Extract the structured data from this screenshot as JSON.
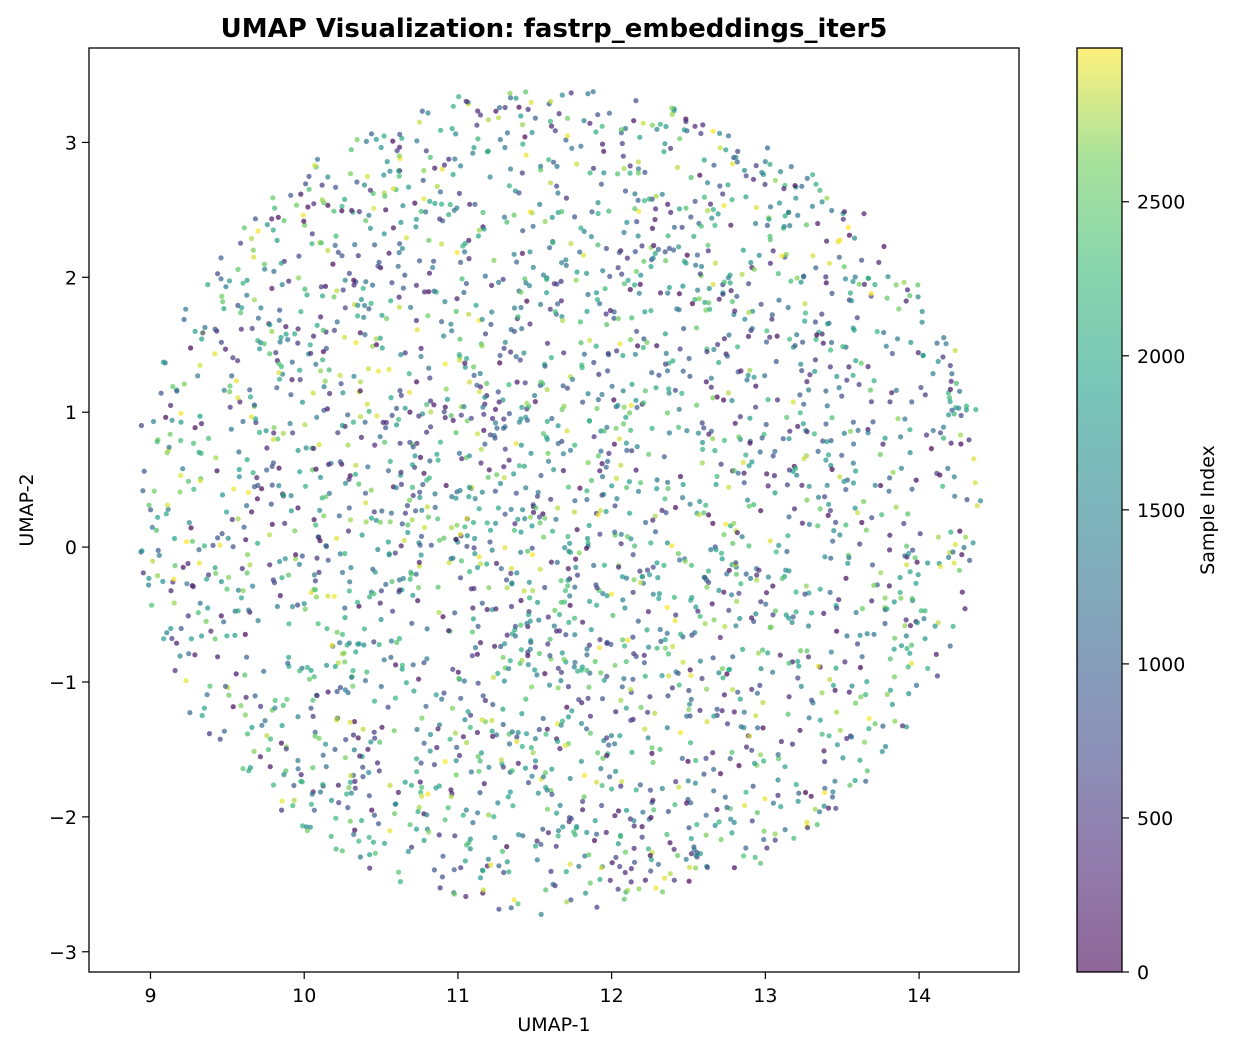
{
  "chart_data": {
    "type": "scatter",
    "title": "UMAP Visualization: fastrp_embeddings_iter5",
    "xlabel": "UMAP-1",
    "ylabel": "UMAP-2",
    "xlim": [
      8.6,
      14.65
    ],
    "ylim": [
      -3.15,
      3.7
    ],
    "xticks": [
      "9",
      "10",
      "11",
      "12",
      "13",
      "14"
    ],
    "yticks": [
      "−3",
      "−2",
      "−1",
      "0",
      "1",
      "2",
      "3"
    ],
    "colorbar": {
      "label": "Sample Index",
      "colormap": "viridis",
      "alpha": 0.6,
      "range": [
        0,
        2999
      ],
      "ticks": [
        "0",
        "500",
        "1000",
        "1500",
        "2000",
        "2500"
      ]
    },
    "point_count": 3000,
    "marker_alpha": 0.7,
    "cloud": {
      "center": [
        11.65,
        0.35
      ],
      "radius_x": 2.75,
      "radius_y": 3.05,
      "seed": 7
    }
  }
}
